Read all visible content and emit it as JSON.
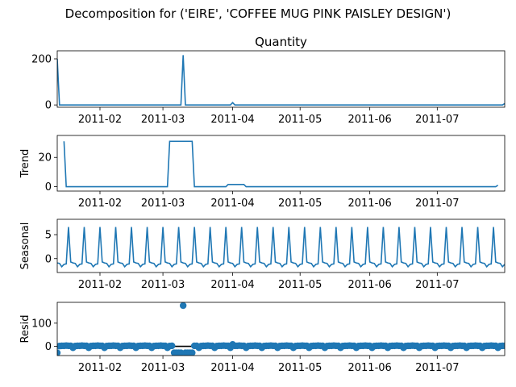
{
  "chart_data": {
    "type": "line",
    "suptitle": "Decomposition for ('EIRE', 'COFFEE MUG PINK PAISLEY DESIGN')",
    "x_range": [
      "2011-01-13",
      "2011-07-31"
    ],
    "x_ticks": [
      "2011-02",
      "2011-03",
      "2011-04",
      "2011-05",
      "2011-06",
      "2011-07"
    ],
    "panels": [
      {
        "key": "observed",
        "title": "Quantity",
        "ylabel": "",
        "ylim": [
          -10,
          235
        ],
        "yticks": [
          0,
          200
        ],
        "kind": "line",
        "points": [
          [
            "2011-01-13",
            200
          ],
          [
            "2011-01-14",
            0
          ],
          [
            "2011-03-09",
            0
          ],
          [
            "2011-03-10",
            216
          ],
          [
            "2011-03-11",
            0
          ],
          [
            "2011-03-31",
            0
          ],
          [
            "2011-04-01",
            10
          ],
          [
            "2011-04-02",
            0
          ],
          [
            "2011-07-30",
            0
          ],
          [
            "2011-07-31",
            6
          ]
        ]
      },
      {
        "key": "trend",
        "title": "",
        "ylabel": "Trend",
        "ylim": [
          -3,
          35
        ],
        "yticks": [
          0,
          20
        ],
        "kind": "line",
        "points": [
          [
            "2011-01-16",
            31
          ],
          [
            "2011-01-17",
            0
          ],
          [
            "2011-03-03",
            0
          ],
          [
            "2011-03-04",
            31
          ],
          [
            "2011-03-14",
            31
          ],
          [
            "2011-03-15",
            0
          ],
          [
            "2011-03-29",
            0
          ],
          [
            "2011-03-30",
            1.5
          ],
          [
            "2011-04-06",
            1.5
          ],
          [
            "2011-04-07",
            0
          ],
          [
            "2011-07-27",
            0
          ],
          [
            "2011-07-28",
            1
          ]
        ]
      },
      {
        "key": "seasonal",
        "title": "",
        "ylabel": "Seasonal",
        "ylim": [
          -2.9,
          8.2
        ],
        "yticks": [
          0,
          5
        ],
        "kind": "seasonal",
        "period_days": 7,
        "first_peak": "2011-01-18",
        "weekly_pattern": [
          6.6,
          -0.7,
          -0.9,
          -1.0,
          -1.7,
          -1.2,
          -1.1
        ]
      },
      {
        "key": "resid",
        "title": "",
        "ylabel": "Resid",
        "ylim": [
          -40,
          190
        ],
        "yticks": [
          0,
          100
        ],
        "kind": "scatter",
        "outliers": [
          [
            "2011-01-13",
            -28
          ],
          [
            "2011-03-06",
            -28
          ],
          [
            "2011-03-07",
            -28
          ],
          [
            "2011-03-08",
            -28
          ],
          [
            "2011-03-09",
            -28
          ],
          [
            "2011-03-10",
            176
          ],
          [
            "2011-03-11",
            -28
          ],
          [
            "2011-03-12",
            -28
          ],
          [
            "2011-03-13",
            -28
          ],
          [
            "2011-03-14",
            -28
          ],
          [
            "2011-04-01",
            8
          ]
        ],
        "baseline_pattern": [
          -6,
          1,
          2,
          2,
          3,
          2,
          2
        ]
      }
    ]
  }
}
